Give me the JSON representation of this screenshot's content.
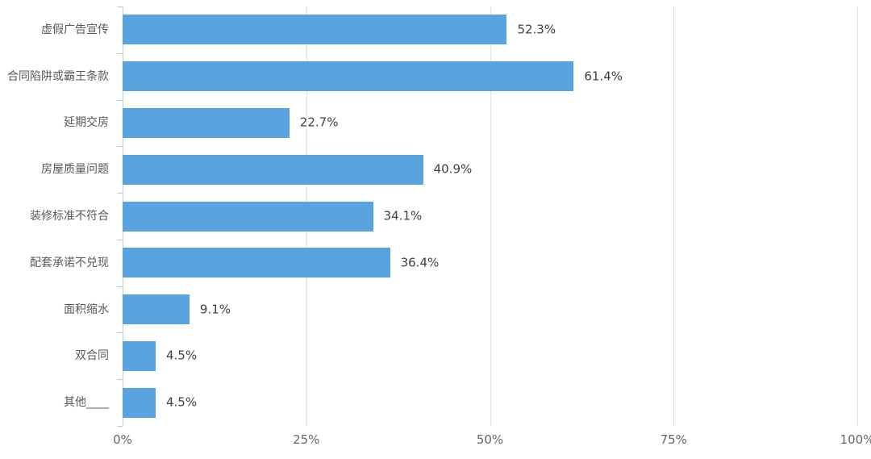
{
  "chart_data": {
    "type": "bar",
    "orientation": "horizontal",
    "title": "",
    "xlabel": "",
    "ylabel": "",
    "categories": [
      "虚假广告宣传",
      "合同陷阱或霸王条款",
      "延期交房",
      "房屋质量问题",
      "装修标准不符合",
      "配套承诺不兑现",
      "面积缩水",
      "双合同",
      "其他____"
    ],
    "values": [
      52.3,
      61.4,
      22.7,
      40.9,
      34.1,
      36.4,
      9.1,
      4.5,
      4.5
    ],
    "value_labels": [
      "52.3%",
      "61.4%",
      "22.7%",
      "40.9%",
      "34.1%",
      "36.4%",
      "9.1%",
      "4.5%",
      "4.5%"
    ],
    "x_ticks": [
      {
        "label": "0%",
        "value": 0
      },
      {
        "label": "25%",
        "value": 25
      },
      {
        "label": "50%",
        "value": 50
      },
      {
        "label": "75%",
        "value": 75
      },
      {
        "label": "100%",
        "value": 100
      }
    ],
    "xlim": [
      0,
      100
    ],
    "grid": "vertical-only",
    "legend": "none",
    "colors": {
      "bar": "#58A3E0",
      "gridline": "#E3E3E3",
      "axis": "#C9C9C9",
      "category_label": "#595959",
      "value_label": "#404040",
      "tick_label": "#666666",
      "background": "#FFFFFF"
    }
  }
}
